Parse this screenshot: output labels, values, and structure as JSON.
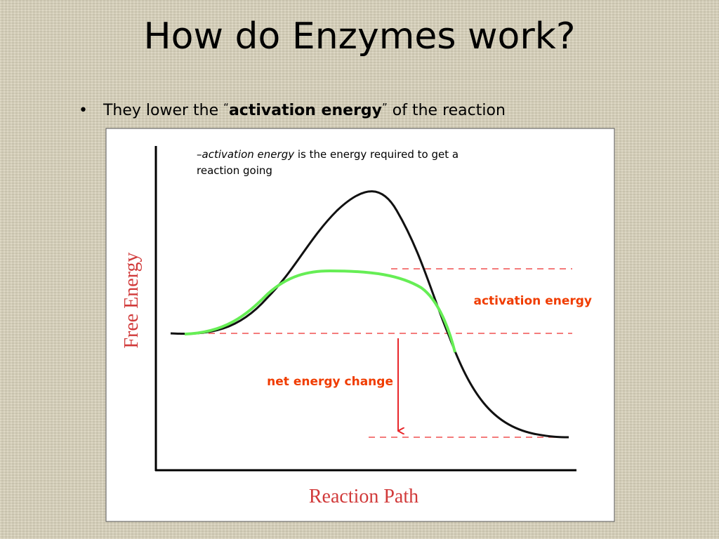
{
  "header": {
    "title": "How do Enzymes work?"
  },
  "bullet": {
    "marker": "•",
    "parts": [
      "They lower the ",
      "“",
      "activation energy",
      "”",
      " of the reaction"
    ]
  },
  "diagram": {
    "note": {
      "dash": "–",
      "term": "activation energy",
      "line1": " is the energy required to get a",
      "line2": "reaction going"
    },
    "y_axis_label": "Free Energy",
    "x_axis_label": "Reaction Path",
    "activation_label": "activation energy",
    "net_label": "net energy change"
  }
}
